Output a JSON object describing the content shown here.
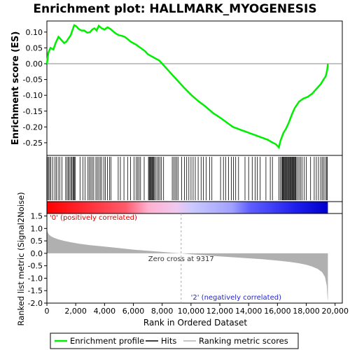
{
  "chart_data": {
    "type": "line",
    "title": "Enrichment plot: HALLMARK_MYOGENESIS",
    "es_panel": {
      "ylabel": "Enrichment score (ES)",
      "ylim": [
        -0.29,
        0.135
      ],
      "yticks": [
        0.1,
        0.05,
        0.0,
        -0.05,
        -0.1,
        -0.15,
        -0.2,
        -0.25
      ],
      "ytick_labels": [
        "0.10",
        "0.05",
        "0.00",
        "-0.05",
        "-0.10",
        "-0.15",
        "-0.20",
        "-0.25"
      ],
      "baseline": 0,
      "series": [
        {
          "name": "Enrichment profile",
          "color": "#00ee00",
          "x": [
            0,
            100,
            250,
            450,
            600,
            800,
            1000,
            1200,
            1350,
            1500,
            1650,
            1800,
            1900,
            2050,
            2200,
            2400,
            2600,
            2800,
            3000,
            3150,
            3300,
            3450,
            3600,
            3800,
            4000,
            4200,
            4400,
            4600,
            4800,
            5000,
            5200,
            5400,
            5600,
            5800,
            6000,
            6200,
            6500,
            6800,
            7000,
            7200,
            7400,
            7600,
            7800,
            8000,
            8500,
            9000,
            9500,
            10000,
            10500,
            11000,
            11500,
            12000,
            12300,
            12600,
            12900,
            13200,
            13500,
            13800,
            14100,
            14400,
            14700,
            15000,
            15300,
            15600,
            15900,
            16100,
            16200,
            16400,
            16600,
            16800,
            17000,
            17200,
            17500,
            17800,
            18100,
            18400,
            18700,
            19000,
            19200,
            19350,
            19450,
            19500
          ],
          "y": [
            0.0,
            0.035,
            0.05,
            0.045,
            0.065,
            0.085,
            0.075,
            0.065,
            0.07,
            0.08,
            0.09,
            0.11,
            0.122,
            0.118,
            0.11,
            0.105,
            0.105,
            0.098,
            0.1,
            0.108,
            0.112,
            0.105,
            0.12,
            0.112,
            0.108,
            0.115,
            0.11,
            0.102,
            0.095,
            0.09,
            0.088,
            0.085,
            0.078,
            0.07,
            0.065,
            0.06,
            0.05,
            0.04,
            0.03,
            0.025,
            0.02,
            0.015,
            0.01,
            0.0,
            -0.025,
            -0.05,
            -0.075,
            -0.098,
            -0.118,
            -0.135,
            -0.155,
            -0.17,
            -0.18,
            -0.19,
            -0.2,
            -0.205,
            -0.21,
            -0.215,
            -0.22,
            -0.225,
            -0.23,
            -0.235,
            -0.24,
            -0.248,
            -0.255,
            -0.265,
            -0.245,
            -0.22,
            -0.205,
            -0.185,
            -0.16,
            -0.14,
            -0.12,
            -0.11,
            -0.105,
            -0.095,
            -0.08,
            -0.065,
            -0.05,
            -0.04,
            -0.02,
            0.0
          ]
        }
      ]
    },
    "hits_panel": {
      "legend_label": "Hits",
      "color": "#000000",
      "positions": [
        40,
        120,
        200,
        280,
        420,
        560,
        650,
        780,
        900,
        1050,
        1300,
        1400,
        1480,
        1560,
        1650,
        1730,
        1800,
        1860,
        1900,
        1960,
        2300,
        2500,
        2650,
        2850,
        2950,
        3050,
        3150,
        3250,
        3400,
        3500,
        3600,
        3700,
        3800,
        3950,
        4050,
        4200,
        4350,
        4450,
        4950,
        5100,
        5350,
        5600,
        5800,
        6050,
        6200,
        6300,
        6400,
        6500,
        6750,
        7050,
        7100,
        7150,
        7200,
        7250,
        7300,
        7350,
        7400,
        7450,
        7550,
        7650,
        7750,
        7850,
        7950,
        8100,
        8700,
        8800,
        8900,
        9000,
        9100,
        9350,
        9550,
        9700,
        9850,
        10000,
        10150,
        10300,
        10500,
        10700,
        10850,
        11050,
        11300,
        11450,
        12050,
        12250,
        12400,
        12600,
        12800,
        12950,
        13100,
        13300,
        13750,
        14000,
        14250,
        14450,
        14600,
        14800,
        15200,
        15500,
        15650,
        16100,
        16200,
        16300,
        16350,
        16400,
        16450,
        16500,
        16550,
        16600,
        16650,
        16700,
        16750,
        16800,
        16850,
        16900,
        16950,
        17000,
        17050,
        17100,
        17150,
        17200,
        17250,
        17300,
        17400,
        17500,
        17600,
        17700,
        17850,
        18000,
        18300,
        18550,
        18700,
        18850,
        19000,
        19100,
        19200,
        19300,
        19400,
        19450
      ]
    },
    "rank_bar": {
      "description_colors": [
        "#ff0000",
        "#ffb0c8",
        "#b0b0ff",
        "#0000dd"
      ]
    },
    "metric_panel": {
      "ylabel": "Ranked list metric (Signal2Noise)",
      "ylim": [
        -2.0,
        1.6
      ],
      "yticks": [
        1.5,
        1.0,
        0.5,
        0.0,
        -0.5,
        -1.0,
        -1.5,
        -2.0
      ],
      "ytick_labels": [
        "1.5",
        "1.0",
        "0.5",
        "0.0",
        "-0.5",
        "-1.0",
        "-1.5",
        "-2.0"
      ],
      "fill_color": "#b0b0b0",
      "legend_label": "Ranking metric scores",
      "x": [
        0,
        50,
        150,
        300,
        500,
        800,
        1200,
        1700,
        2300,
        3000,
        4000,
        5000,
        6000,
        7000,
        8000,
        8700,
        9317,
        10000,
        11000,
        12000,
        13000,
        14000,
        15000,
        16000,
        16800,
        17500,
        18000,
        18400,
        18800,
        19100,
        19300,
        19420,
        19480,
        19500
      ],
      "y": [
        1.0,
        0.85,
        0.75,
        0.68,
        0.62,
        0.56,
        0.5,
        0.44,
        0.38,
        0.33,
        0.27,
        0.21,
        0.15,
        0.1,
        0.055,
        0.025,
        0.0,
        -0.04,
        -0.08,
        -0.12,
        -0.16,
        -0.2,
        -0.24,
        -0.29,
        -0.34,
        -0.4,
        -0.46,
        -0.53,
        -0.63,
        -0.76,
        -0.95,
        -1.3,
        -1.85,
        -1.9
      ],
      "zero_cross_label": "Zero cross at 9317",
      "zero_cross_x": 9317,
      "pos_label": "'0' (positively correlated)",
      "neg_label": "'2' (negatively correlated)"
    },
    "xaxis": {
      "label": "Rank in Ordered Dataset",
      "xlim": [
        0,
        20500
      ],
      "ticks": [
        0,
        2000,
        4000,
        6000,
        8000,
        10000,
        12000,
        14000,
        16000,
        18000,
        20000
      ],
      "tick_labels": [
        "0",
        "2,000",
        "4,000",
        "6,000",
        "8,000",
        "10,000",
        "12,000",
        "14,000",
        "16,000",
        "18,000",
        "20,000"
      ],
      "n_genes": 19500
    },
    "legend": {
      "placement": "bottom",
      "items": [
        {
          "label": "Enrichment profile",
          "color": "#00ee00"
        },
        {
          "label": "Hits",
          "color": "#000000"
        },
        {
          "label": "Ranking metric scores",
          "color": "#b0b0b0"
        }
      ]
    }
  }
}
